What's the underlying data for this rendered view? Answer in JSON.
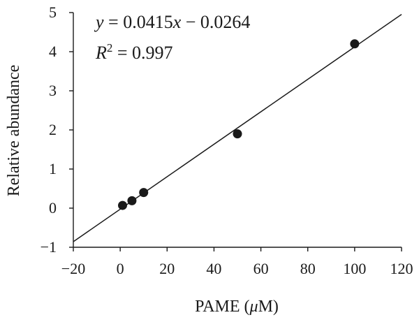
{
  "chart_data": {
    "type": "scatter",
    "xlabel_prefix": "PAME (",
    "xlabel_unit": "μ",
    "xlabel_suffix": "M)",
    "ylabel": "Relative abundance",
    "xlim": [
      -20,
      120
    ],
    "ylim": [
      -1,
      5
    ],
    "xticks": [
      -20,
      0,
      20,
      40,
      60,
      80,
      100,
      120
    ],
    "yticks": [
      -1,
      0,
      1,
      2,
      3,
      4,
      5
    ],
    "xtick_labels": [
      "−20",
      "0",
      "20",
      "40",
      "60",
      "80",
      "100",
      "120"
    ],
    "ytick_labels": [
      "−1",
      "0",
      "1",
      "2",
      "3",
      "4",
      "5"
    ],
    "points": [
      {
        "x": 1,
        "y": 0.07
      },
      {
        "x": 5,
        "y": 0.19
      },
      {
        "x": 10,
        "y": 0.4
      },
      {
        "x": 50,
        "y": 1.9
      },
      {
        "x": 100,
        "y": 4.2
      }
    ],
    "fit": {
      "slope": 0.0415,
      "intercept": -0.0264,
      "x_range": [
        -20,
        120
      ]
    },
    "equation": {
      "y_var": "y",
      "eq_mid": " = 0.0415",
      "x_var": "x",
      "eq_tail": " − 0.0264",
      "r_var": "R",
      "r_exp": "2",
      "r_tail": " = 0.997"
    },
    "grid": false,
    "legend": "none"
  }
}
